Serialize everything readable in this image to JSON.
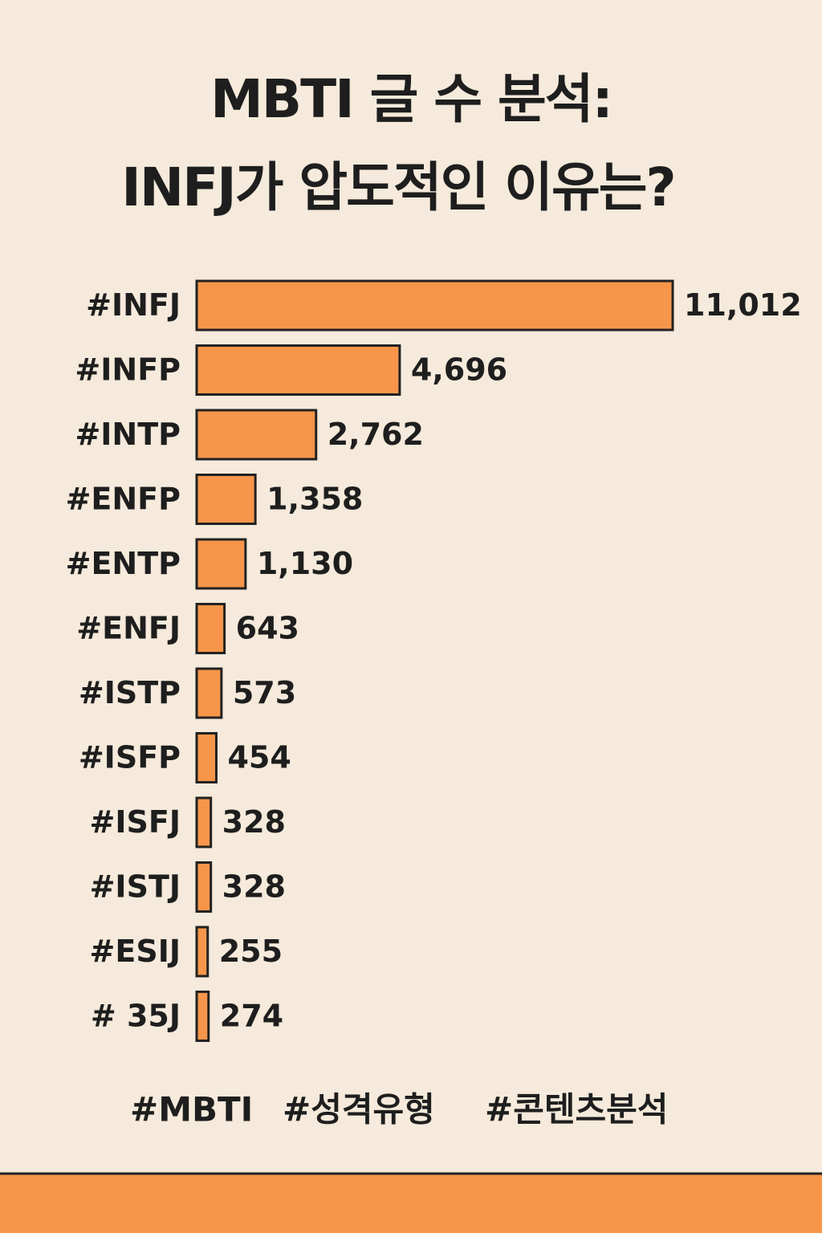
{
  "chart_data": {
    "type": "bar",
    "orientation": "horizontal",
    "title_lines": [
      "MBTI 글 수 분석:",
      "INFJ가 압도적인 이유는?"
    ],
    "categories": [
      "#INFJ",
      "#INFP",
      "#INTP",
      "#ENFP",
      "#ENTP",
      "#ENFJ",
      "#ISTP",
      "#ISFP",
      "#ISFJ",
      "#ISTJ",
      "#ESIJ",
      "# 35J"
    ],
    "values": [
      11012,
      4696,
      2762,
      1358,
      1130,
      643,
      573,
      454,
      328,
      328,
      255,
      274
    ],
    "value_labels": [
      "11,012",
      "4,696",
      "2,762",
      "1,358",
      "1,130",
      "643",
      "573",
      "454",
      "328",
      "328",
      "255",
      "274"
    ],
    "color": "#f7964a",
    "hashtags": [
      "#MBTI",
      "#성격유형",
      "#콘텐츠분석"
    ]
  }
}
